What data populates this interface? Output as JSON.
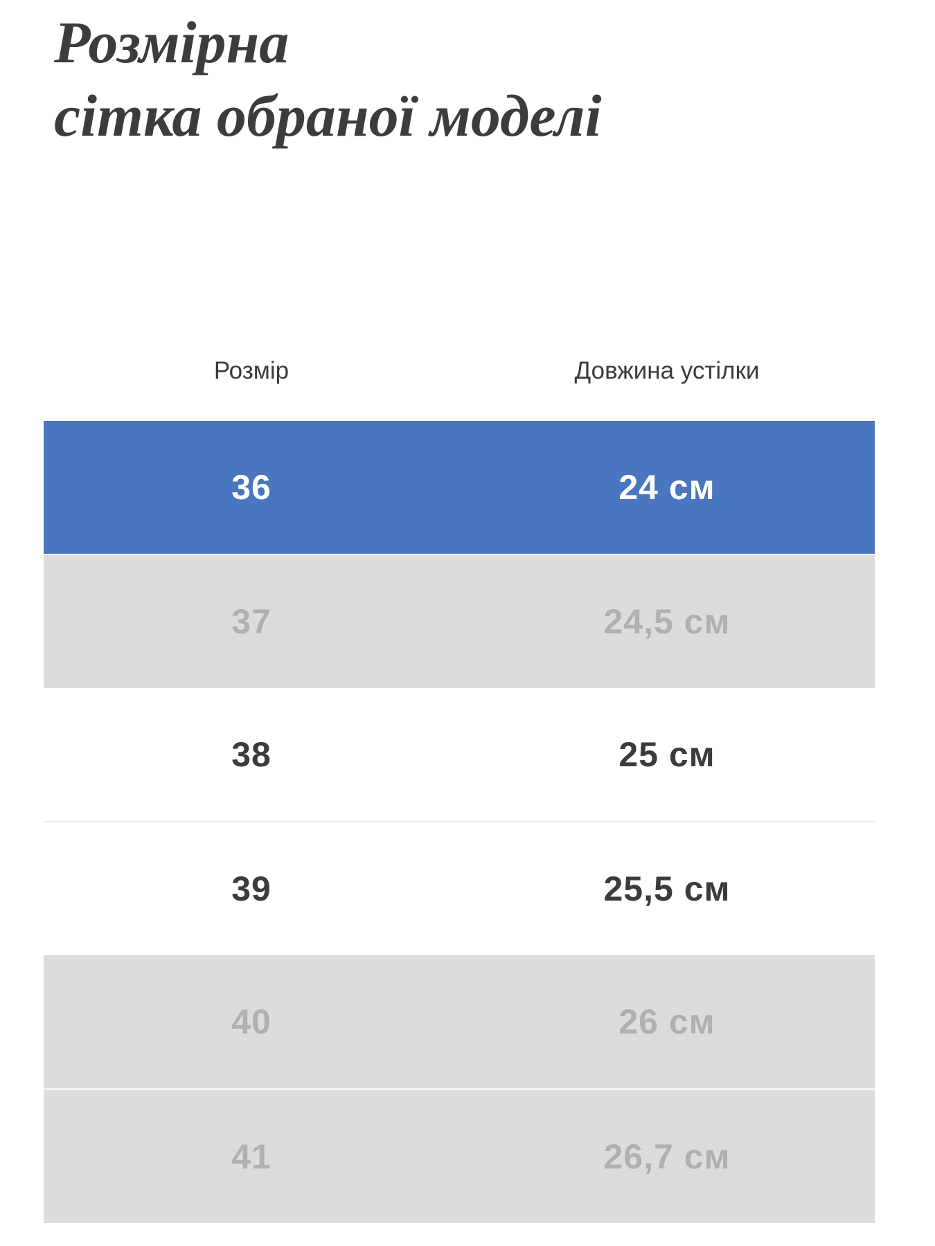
{
  "page": {
    "background": "#ffffff"
  },
  "title": {
    "line1": "Розмірна",
    "line2": "сітка обраної моделі"
  },
  "table": {
    "columns": [
      {
        "label": "Розмір"
      },
      {
        "label": "Довжина устілки"
      }
    ],
    "rows": [
      {
        "size": "36",
        "length": "24 см",
        "state": "selected"
      },
      {
        "size": "37",
        "length": "24,5 см",
        "state": "unavailable"
      },
      {
        "size": "38",
        "length": "25 см",
        "state": "available"
      },
      {
        "size": "39",
        "length": "25,5 см",
        "state": "available"
      },
      {
        "size": "40",
        "length": "26 см",
        "state": "unavailable"
      },
      {
        "size": "41",
        "length": "26,7 см",
        "state": "unavailable"
      }
    ],
    "colors": {
      "selected_bg": "#4a75bf",
      "selected_text": "#ffffff",
      "unavailable_bg": "#dcdcdc",
      "unavailable_text": "#b0b0b2",
      "available_text": "#3b3b3b"
    }
  }
}
